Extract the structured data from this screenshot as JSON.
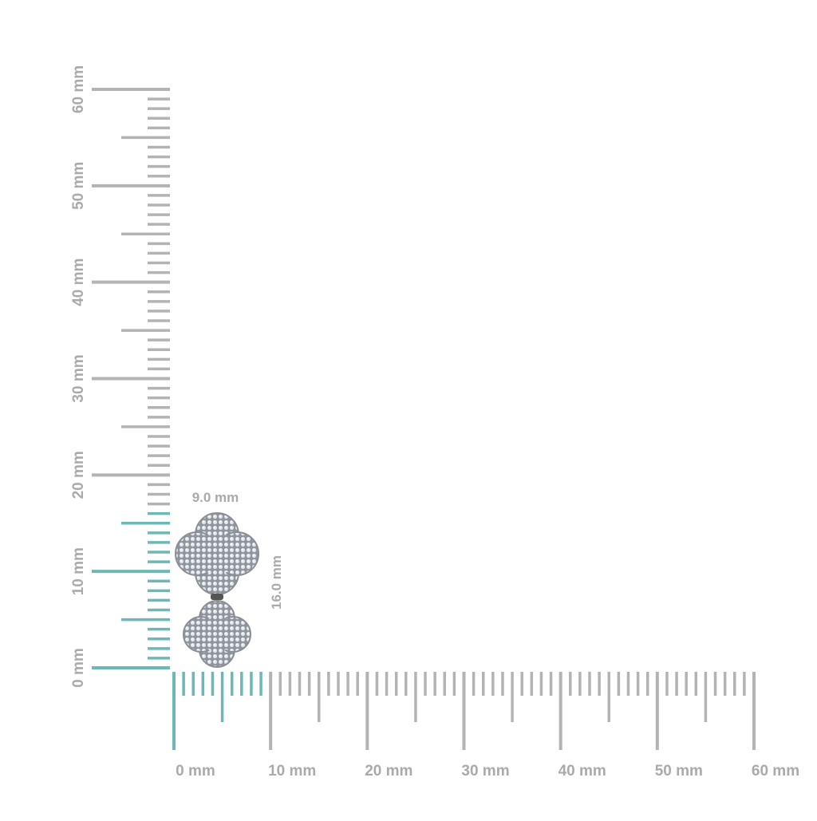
{
  "rulers": {
    "unit_labels_x": [
      "0 mm",
      "10 mm",
      "20 mm",
      "30 mm",
      "40 mm",
      "50 mm",
      "60 mm"
    ],
    "unit_labels_y": [
      "0 mm",
      "10 mm",
      "20 mm",
      "30 mm",
      "40 mm",
      "50 mm",
      "60 mm"
    ],
    "max_mm": 60,
    "highlight_width_mm": 9,
    "highlight_height_mm": 16,
    "highlight_color": "#6bb8b6",
    "tick_color": "#b3b3b3"
  },
  "product": {
    "width_label": "9.0 mm",
    "height_label": "16.0 mm",
    "metal_color": "#c9cdd2"
  }
}
